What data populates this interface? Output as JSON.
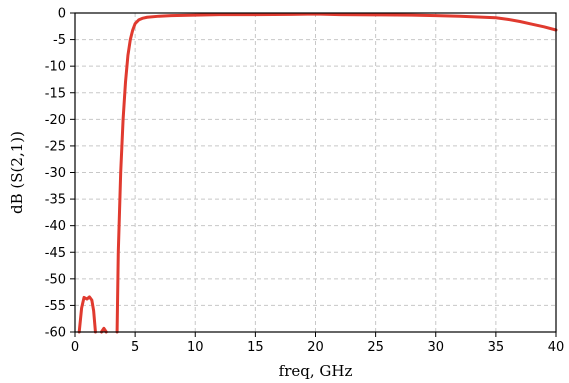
{
  "chart_data": {
    "type": "line",
    "xlabel": "freq, GHz",
    "ylabel": "dB (S(2,1))",
    "xlim": [
      0,
      40
    ],
    "ylim": [
      -60,
      0
    ],
    "grid": true,
    "x_ticks": [
      "0",
      "5",
      "10",
      "15",
      "20",
      "25",
      "30",
      "35",
      "40"
    ],
    "y_ticks": [
      "0",
      "-5",
      "-10",
      "-15",
      "-20",
      "-25",
      "-30",
      "-35",
      "-40",
      "-45",
      "-50",
      "-55",
      "-60"
    ],
    "series": [
      {
        "color": "#e03a2f",
        "segments": [
          {
            "x": [
              0.35,
              0.55,
              0.75,
              1.0,
              1.2,
              1.4,
              1.55,
              1.7
            ],
            "y": [
              -60,
              -55.5,
              -53.5,
              -53.8,
              -53.4,
              -54.0,
              -56,
              -60
            ]
          },
          {
            "x": [
              2.2,
              2.4,
              2.6
            ],
            "y": [
              -60,
              -59.3,
              -60
            ]
          },
          {
            "x": [
              3.5,
              3.6,
              3.8,
              4.0,
              4.2,
              4.4,
              4.6,
              4.8,
              5.0,
              5.3,
              5.6,
              6.0,
              7,
              8,
              10,
              12,
              15,
              18,
              20,
              22,
              25,
              28,
              30,
              32,
              35,
              36,
              37,
              38,
              39,
              40
            ],
            "y": [
              -60,
              -45,
              -30,
              -20,
              -13,
              -8,
              -5,
              -3.2,
              -2.0,
              -1.3,
              -1.0,
              -0.8,
              -0.6,
              -0.5,
              -0.4,
              -0.3,
              -0.3,
              -0.25,
              -0.2,
              -0.3,
              -0.35,
              -0.4,
              -0.5,
              -0.6,
              -0.9,
              -1.2,
              -1.6,
              -2.1,
              -2.6,
              -3.2
            ]
          }
        ]
      }
    ]
  }
}
